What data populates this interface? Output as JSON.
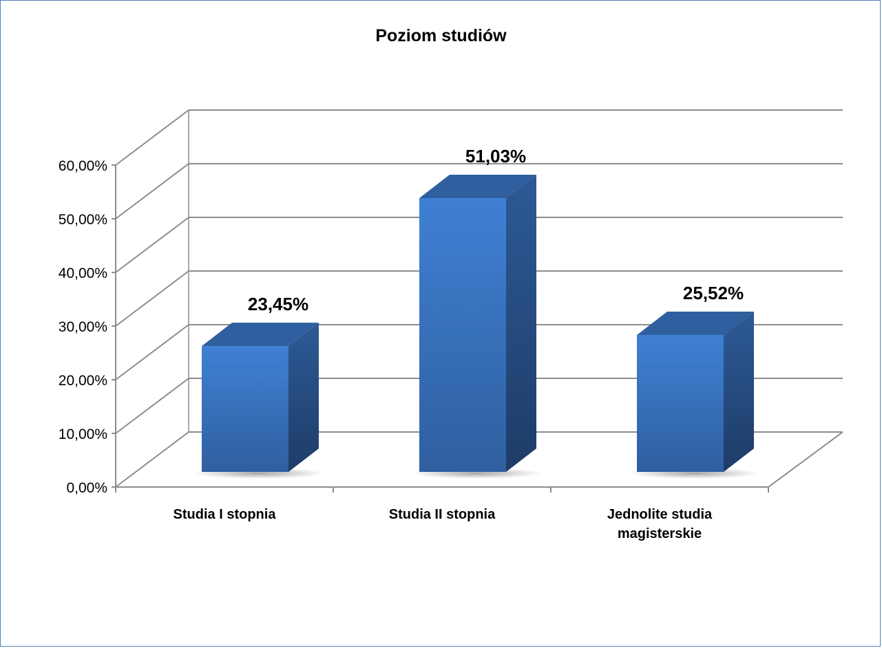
{
  "chart_data": {
    "type": "bar",
    "title": "Poziom studiów",
    "categories": [
      "Studia I stopnia",
      "Studia II stopnia",
      "Jednolite studia magisterskie"
    ],
    "category_lines": [
      [
        "Studia I stopnia"
      ],
      [
        "Studia II stopnia"
      ],
      [
        "Jednolite studia",
        "magisterskie"
      ]
    ],
    "values": [
      23.45,
      51.03,
      25.52
    ],
    "data_labels": [
      "23,45%",
      "51,03%",
      "25,52%"
    ],
    "ylim": [
      0,
      60
    ],
    "yticks": [
      0,
      10,
      20,
      30,
      40,
      50,
      60
    ],
    "ytick_labels": [
      "0,00%",
      "10,00%",
      "20,00%",
      "30,00%",
      "40,00%",
      "50,00%",
      "60,00%"
    ],
    "grid": true,
    "legend": "none",
    "style": "3d-column",
    "bar_color": "#3a74c4",
    "bar_side_color": "#274f86",
    "bar_top_color": "#2f5f9e",
    "grid_color": "#8c8c8c"
  }
}
